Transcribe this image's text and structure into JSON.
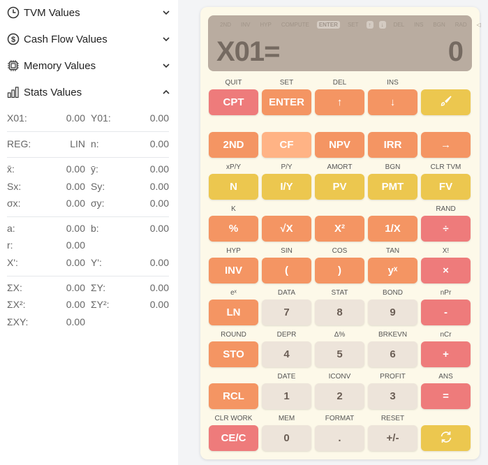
{
  "sidebar": {
    "sections": [
      {
        "label": "TVM Values",
        "icon": "clock-icon",
        "expanded": false
      },
      {
        "label": "Cash Flow Values",
        "icon": "dollar-circle-icon",
        "expanded": false
      },
      {
        "label": "Memory Values",
        "icon": "chip-icon",
        "expanded": false
      },
      {
        "label": "Stats Values",
        "icon": "bar-chart-icon",
        "expanded": true
      }
    ],
    "stats": [
      [
        [
          "X01:",
          "0.00",
          "Y01:",
          "0.00"
        ]
      ],
      [
        [
          "REG:",
          "LIN",
          "n:",
          "0.00"
        ]
      ],
      [
        [
          "x̄:",
          "0.00",
          "ȳ:",
          "0.00"
        ],
        [
          "Sx:",
          "0.00",
          "Sy:",
          "0.00"
        ],
        [
          "σx:",
          "0.00",
          "σy:",
          "0.00"
        ]
      ],
      [
        [
          "a:",
          "0.00",
          "b:",
          "0.00"
        ],
        [
          "r:",
          "0.00",
          "",
          ""
        ],
        [
          "X':",
          "0.00",
          "Y':",
          "0.00"
        ]
      ],
      [
        [
          "ΣX:",
          "0.00",
          "ΣY:",
          "0.00"
        ],
        [
          "ΣX²:",
          "0.00",
          "ΣY²:",
          "0.00"
        ],
        [
          "ΣXY:",
          "0.00",
          "",
          ""
        ]
      ]
    ]
  },
  "display": {
    "indicators": [
      {
        "t": "2ND"
      },
      {
        "t": "INV"
      },
      {
        "t": "HYP"
      },
      {
        "t": "COMPUTE"
      },
      {
        "t": "ENTER",
        "on": true
      },
      {
        "t": "SET"
      },
      {
        "t": "↑",
        "on": true
      },
      {
        "t": "↓",
        "on": true
      },
      {
        "t": "DEL"
      },
      {
        "t": "INS"
      },
      {
        "t": "BGN"
      },
      {
        "t": "RAD"
      },
      {
        "t": "◁"
      },
      {
        "t": "+"
      }
    ],
    "label": "X01=",
    "value": "0"
  },
  "colors": {
    "pink": "#ee7b7b",
    "orange": "#f49563",
    "yellow": "#ecc74f",
    "light": "#ffb385",
    "beige": "#ede4da"
  },
  "keys": [
    [
      [
        "CPT",
        "QUIT",
        "pink"
      ],
      [
        "ENTER",
        "SET",
        "orange"
      ],
      [
        "↑",
        "DEL",
        "orange"
      ],
      [
        "↓",
        "INS",
        "orange"
      ],
      [
        "",
        "",
        "yellow",
        "brush-icon"
      ]
    ],
    [
      [
        "2ND",
        "",
        "orange"
      ],
      [
        "CF",
        "",
        "light"
      ],
      [
        "NPV",
        "",
        "orange"
      ],
      [
        "IRR",
        "",
        "orange"
      ],
      [
        "→",
        "",
        "orange"
      ]
    ],
    [
      [
        "N",
        "xP/Y",
        "yellow"
      ],
      [
        "I/Y",
        "P/Y",
        "yellow"
      ],
      [
        "PV",
        "AMORT",
        "yellow"
      ],
      [
        "PMT",
        "BGN",
        "yellow"
      ],
      [
        "FV",
        "CLR TVM",
        "yellow"
      ]
    ],
    [
      [
        "%",
        "K",
        "orange"
      ],
      [
        "√X",
        "",
        "orange"
      ],
      [
        "X²",
        "",
        "orange"
      ],
      [
        "1/X",
        "",
        "orange"
      ],
      [
        "÷",
        "RAND",
        "pink"
      ]
    ],
    [
      [
        "INV",
        "HYP",
        "orange"
      ],
      [
        "(",
        "SIN",
        "orange"
      ],
      [
        ")",
        "COS",
        "orange"
      ],
      [
        "yˣ",
        "TAN",
        "orange"
      ],
      [
        "×",
        "X!",
        "pink"
      ]
    ],
    [
      [
        "LN",
        "eˣ",
        "orange"
      ],
      [
        "7",
        "DATA",
        "beige"
      ],
      [
        "8",
        "STAT",
        "beige"
      ],
      [
        "9",
        "BOND",
        "beige"
      ],
      [
        "-",
        "nPr",
        "pink"
      ]
    ],
    [
      [
        "STO",
        "ROUND",
        "orange"
      ],
      [
        "4",
        "DEPR",
        "beige"
      ],
      [
        "5",
        "Δ%",
        "beige"
      ],
      [
        "6",
        "BRKEVN",
        "beige"
      ],
      [
        "+",
        "nCr",
        "pink"
      ]
    ],
    [
      [
        "RCL",
        "",
        "orange"
      ],
      [
        "1",
        "DATE",
        "beige"
      ],
      [
        "2",
        "ICONV",
        "beige"
      ],
      [
        "3",
        "PROFIT",
        "beige"
      ],
      [
        "=",
        "ANS",
        "pink"
      ]
    ],
    [
      [
        "CE/C",
        "CLR WORK",
        "pink"
      ],
      [
        "0",
        "MEM",
        "beige"
      ],
      [
        ".",
        "FORMAT",
        "beige"
      ],
      [
        "+/-",
        "RESET",
        "beige"
      ],
      [
        "",
        "",
        "yellow",
        "refresh-icon"
      ]
    ]
  ]
}
